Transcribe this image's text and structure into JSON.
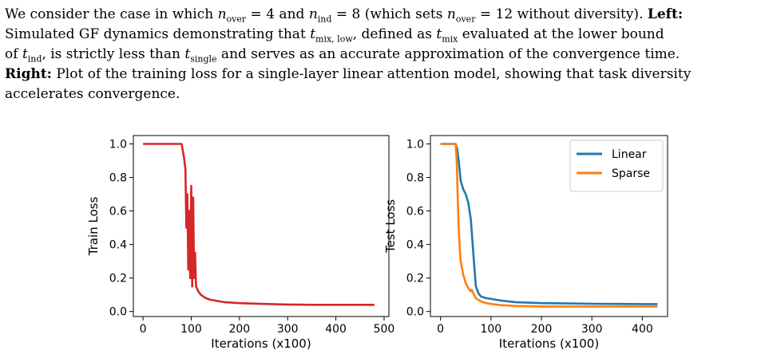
{
  "caption": {
    "p1_a": "We consider the case in which ",
    "n_over": "n",
    "over_sub": "over",
    "eq4": " = 4 and ",
    "n_ind": "n",
    "ind_sub": "ind",
    "eq8": " = 8 (which sets ",
    "n_over2": "n",
    "over_sub2": "over",
    "eq12": " = 12 without diversity).",
    "left_label": "Left:",
    "p2_a": "Simulated GF dynamics demonstrating that ",
    "t_mixlow": "t",
    "mixlow_sub": "mix, low",
    "p2_b": ", defined as ",
    "t_mix": "t",
    "mix_sub": "mix",
    "p2_c": " evaluated at the lower bound",
    "p3_a": "of ",
    "t_ind": "t",
    "ind_sub2": "ind",
    "p3_b": ", is strictly less than ",
    "t_single": "t",
    "single_sub": "single",
    "p3_c": " and serves as an accurate approximation of the convergence time.",
    "right_label": "Right:",
    "p4": " Plot of the training loss for a single-layer linear attention model, showing that task diversity",
    "p5": "accelerates convergence."
  },
  "chart_data": [
    {
      "type": "line",
      "xlabel": "Iterations (x100)",
      "ylabel": "Train Loss",
      "xlim": [
        -20,
        510
      ],
      "ylim": [
        -0.03,
        1.05
      ],
      "xticks": [
        "0",
        "100",
        "200",
        "300",
        "400",
        "500"
      ],
      "xtick_values": [
        0,
        100,
        200,
        300,
        400,
        500
      ],
      "yticks": [
        "0.0",
        "0.2",
        "0.4",
        "0.6",
        "0.8",
        "1.0"
      ],
      "ytick_values": [
        0,
        0.2,
        0.4,
        0.6,
        0.8,
        1.0
      ],
      "series": [
        {
          "color": "#d62728",
          "x": [
            0,
            20,
            40,
            60,
            80,
            85,
            88,
            90,
            92,
            94,
            96,
            98,
            100,
            102,
            104,
            106,
            108,
            110,
            115,
            120,
            130,
            140,
            150,
            170,
            200,
            250,
            300,
            350,
            400,
            450,
            480
          ],
          "y": [
            1.0,
            1.0,
            1.0,
            1.0,
            1.0,
            0.92,
            0.85,
            0.5,
            0.7,
            0.25,
            0.6,
            0.2,
            0.75,
            0.15,
            0.68,
            0.2,
            0.35,
            0.15,
            0.12,
            0.1,
            0.08,
            0.07,
            0.065,
            0.055,
            0.05,
            0.045,
            0.042,
            0.04,
            0.04,
            0.04,
            0.04
          ]
        }
      ]
    },
    {
      "type": "line",
      "xlabel": "Iterations (x100)",
      "ylabel": "Test Loss",
      "xlim": [
        -20,
        450
      ],
      "ylim": [
        -0.03,
        1.05
      ],
      "xticks": [
        "0",
        "100",
        "200",
        "300",
        "400"
      ],
      "xtick_values": [
        0,
        100,
        200,
        300,
        400
      ],
      "yticks": [
        "0.0",
        "0.2",
        "0.4",
        "0.6",
        "0.8",
        "1.0"
      ],
      "ytick_values": [
        0,
        0.2,
        0.4,
        0.6,
        0.8,
        1.0
      ],
      "legend": "top-right",
      "series": [
        {
          "name": "Linear",
          "color": "#1f77b4",
          "x": [
            0,
            10,
            20,
            30,
            33,
            36,
            40,
            45,
            50,
            55,
            60,
            65,
            70,
            75,
            80,
            90,
            100,
            120,
            150,
            200,
            250,
            300,
            350,
            400,
            430
          ],
          "y": [
            1.0,
            1.0,
            1.0,
            1.0,
            0.97,
            0.9,
            0.78,
            0.73,
            0.7,
            0.65,
            0.55,
            0.35,
            0.15,
            0.11,
            0.09,
            0.08,
            0.075,
            0.065,
            0.055,
            0.05,
            0.048,
            0.046,
            0.045,
            0.044,
            0.044
          ]
        },
        {
          "name": "Sparse",
          "color": "#ff7f0e",
          "x": [
            0,
            10,
            20,
            30,
            32,
            34,
            36,
            38,
            40,
            45,
            50,
            55,
            60,
            62,
            65,
            70,
            80,
            90,
            100,
            120,
            150,
            200,
            250,
            300,
            350,
            400,
            430
          ],
          "y": [
            1.0,
            1.0,
            1.0,
            1.0,
            0.9,
            0.7,
            0.5,
            0.38,
            0.3,
            0.22,
            0.17,
            0.14,
            0.12,
            0.13,
            0.11,
            0.08,
            0.06,
            0.05,
            0.045,
            0.038,
            0.033,
            0.03,
            0.03,
            0.03,
            0.03,
            0.03,
            0.03
          ]
        }
      ]
    }
  ]
}
